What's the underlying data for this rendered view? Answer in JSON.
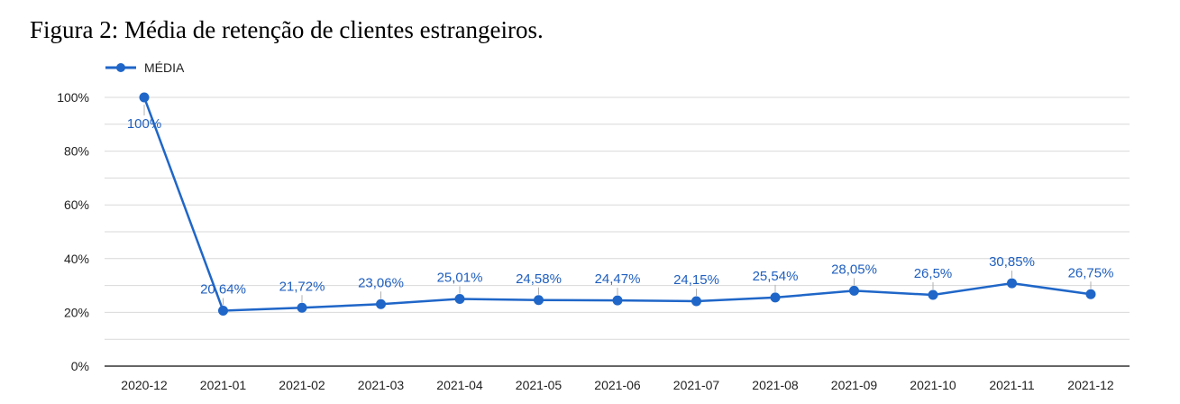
{
  "caption": "Figura 2: Média de retenção de clientes estrangeiros.",
  "chart_data": {
    "type": "line",
    "title": "",
    "xlabel": "",
    "ylabel": "",
    "categories": [
      "2020-12",
      "2021-01",
      "2021-02",
      "2021-03",
      "2021-04",
      "2021-05",
      "2021-06",
      "2021-07",
      "2021-08",
      "2021-09",
      "2021-10",
      "2021-11",
      "2021-12"
    ],
    "series": [
      {
        "name": "MÉDIA",
        "values": [
          100,
          20.64,
          21.72,
          23.06,
          25.01,
          24.58,
          24.47,
          24.15,
          25.54,
          28.05,
          26.5,
          30.85,
          26.75
        ],
        "labels": [
          "100%",
          "20,64%",
          "21,72%",
          "23,06%",
          "25,01%",
          "24,58%",
          "24,47%",
          "24,15%",
          "25,54%",
          "28,05%",
          "26,5%",
          "30,85%",
          "26,75%"
        ],
        "color": "#1f66c8"
      }
    ],
    "ylim": [
      0,
      100
    ],
    "yticks": [
      0,
      20,
      40,
      60,
      80,
      100
    ],
    "ytick_labels": [
      "0%",
      "20%",
      "40%",
      "60%",
      "80%",
      "100%"
    ],
    "grid": true,
    "legend": "top-left",
    "colors": {
      "line": "#1f66c8",
      "label": "#1f5fbf",
      "grid": "#d9d9d9",
      "axis": "#333333"
    }
  }
}
